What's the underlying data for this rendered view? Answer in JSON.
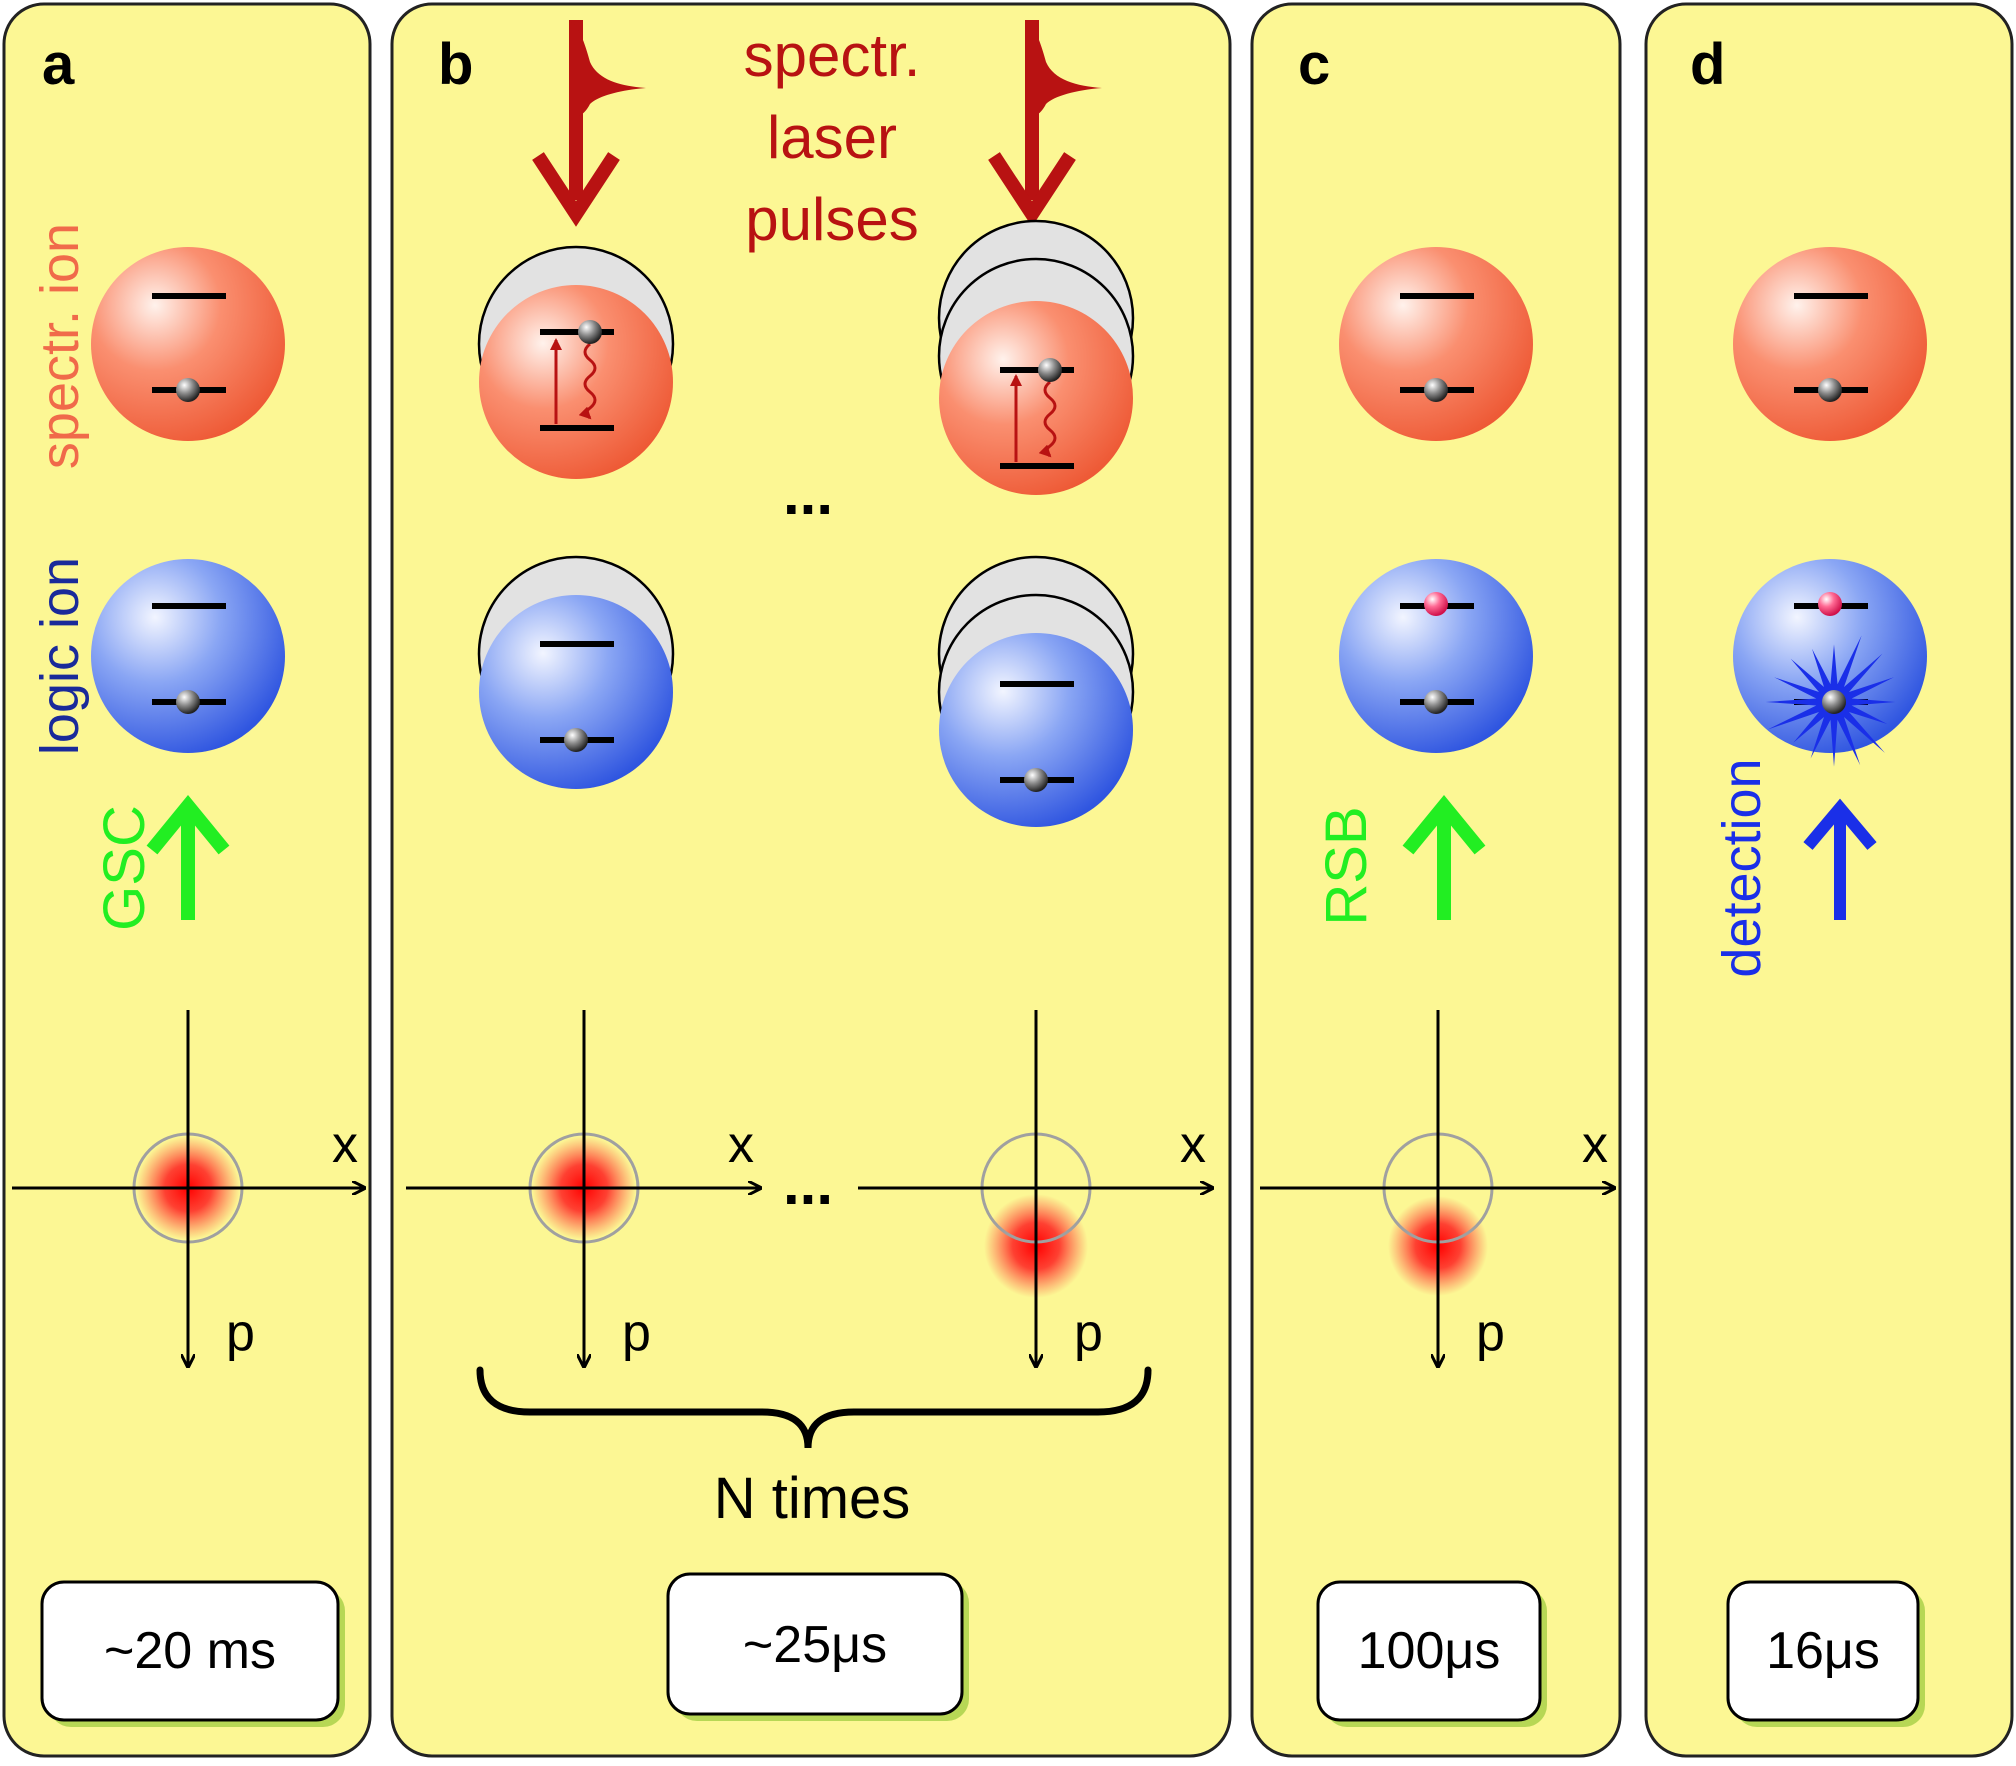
{
  "panels": {
    "a": {
      "label": "a",
      "time": "~20 ms"
    },
    "b": {
      "label": "b",
      "time": "~25μs"
    },
    "c": {
      "label": "c",
      "time": "100μs"
    },
    "d": {
      "label": "d",
      "time": "16μs"
    }
  },
  "labels": {
    "spectr_ion": "spectr. ion",
    "logic_ion": "logic ion",
    "gsc": "GSC",
    "rsb": "RSB",
    "detection": "detection",
    "laser_line1": "spectr.",
    "laser_line2": "laser",
    "laser_line3": "pulses",
    "n_times": "N times",
    "ellipsis": "...",
    "x_axis": "x",
    "p_axis": "p"
  },
  "colors": {
    "panel_fill": "#fcf794",
    "spectr_ion": "#f06a4a",
    "logic_ion": "#4a72e8",
    "gsc_arrow": "#22ee22",
    "detection_arrow": "#1a2fe8",
    "laser": "#b81212",
    "wavepacket": "#ff1010",
    "excited_dot": "#ff3070"
  },
  "icons": [
    "laser-pulse-icon",
    "up-arrow-icon",
    "curly-brace-icon",
    "fluorescence-star-icon"
  ]
}
